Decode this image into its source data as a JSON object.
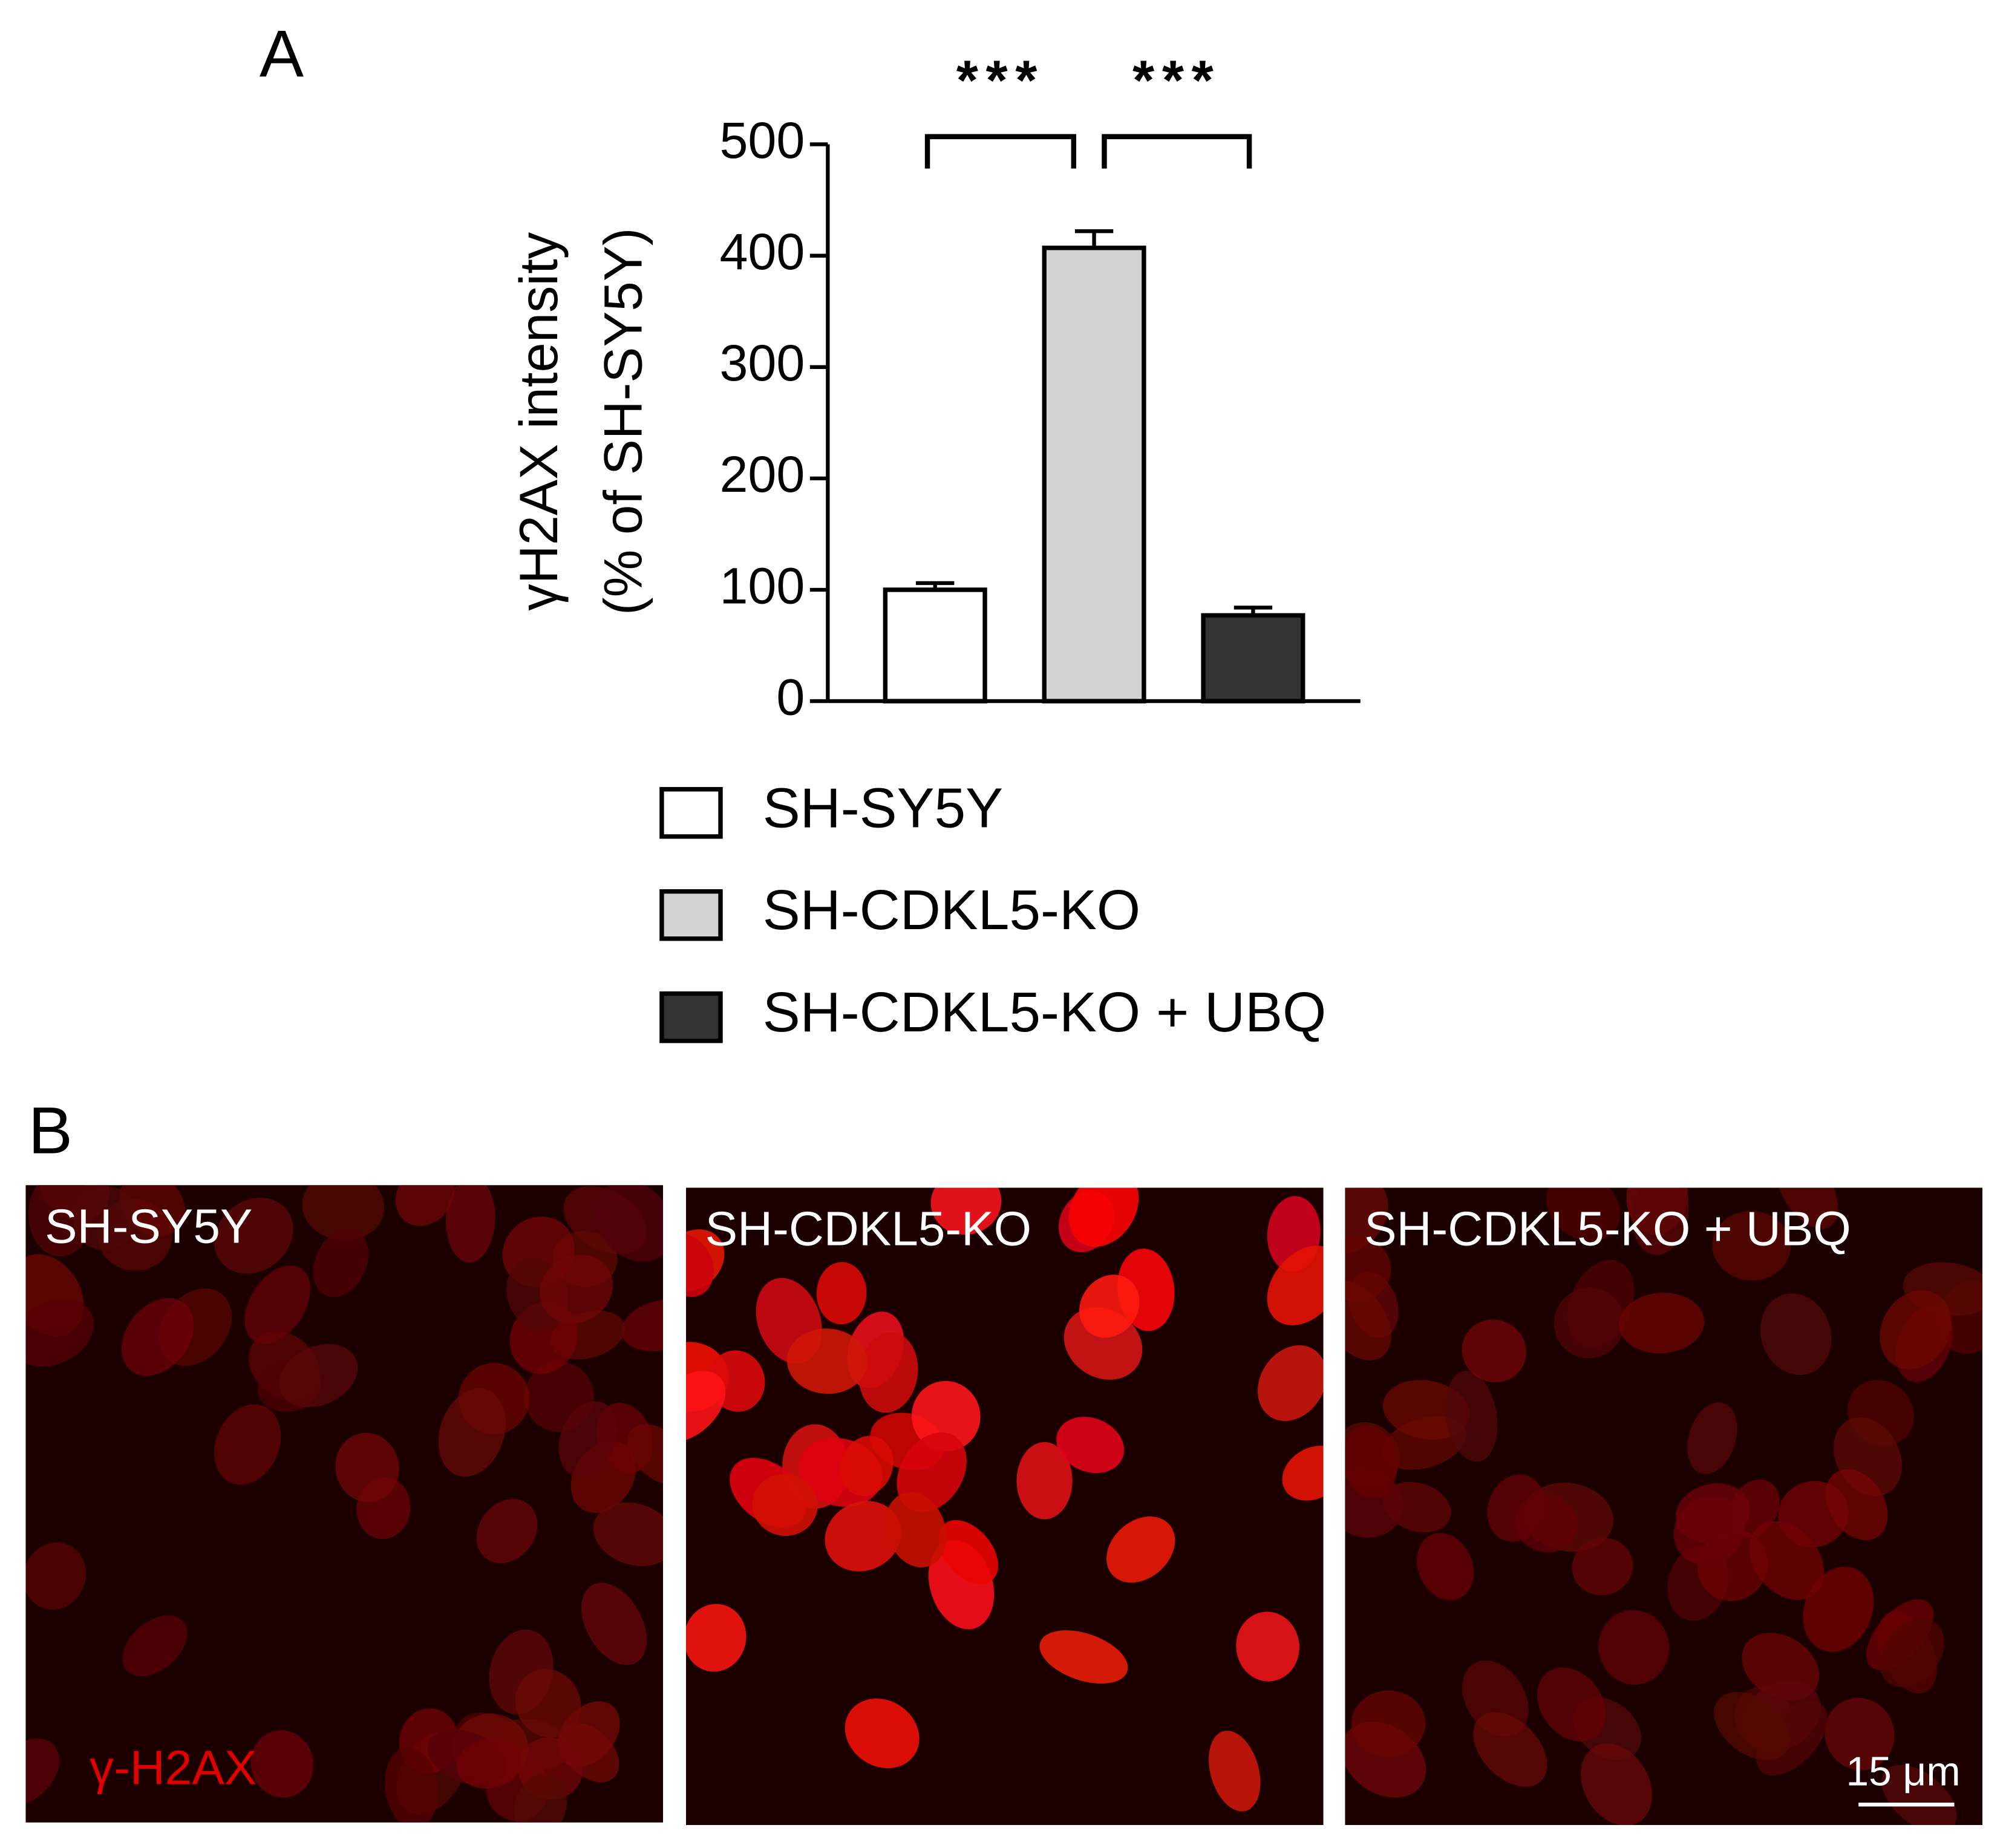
{
  "panel_labels": [
    "A",
    "B"
  ],
  "chart_data": {
    "type": "bar",
    "ylabel": [
      "γH2AX intensity",
      "(% of SH-SY5Y)"
    ],
    "series": [
      {
        "name": "SH-SY5Y",
        "color": "#ffffff",
        "values": [
          100
        ],
        "errors": [
          6
        ]
      },
      {
        "name": "SH-CDKL5-KO",
        "color": "#d3d3d3",
        "values": [
          407
        ],
        "errors": [
          15
        ]
      },
      {
        "name": "SH-CDKL5-KO + UBQ",
        "color": "#333333",
        "values": [
          77
        ],
        "errors": [
          7
        ]
      }
    ],
    "significance": [
      "***",
      "***"
    ],
    "ylim": [
      0,
      500
    ],
    "yticks": [
      0,
      100,
      200,
      300,
      400,
      500
    ],
    "legend": "bottom",
    "grid": false
  },
  "micrographs": {
    "images": [
      {
        "label": "SH-SY5Y",
        "intensity": "low"
      },
      {
        "label": "SH-CDKL5-KO",
        "intensity": "high"
      },
      {
        "label": "SH-CDKL5-KO + UBQ",
        "intensity": "low"
      }
    ],
    "stain_label": "γ-H2AX",
    "scale_bar": "15 μm"
  }
}
